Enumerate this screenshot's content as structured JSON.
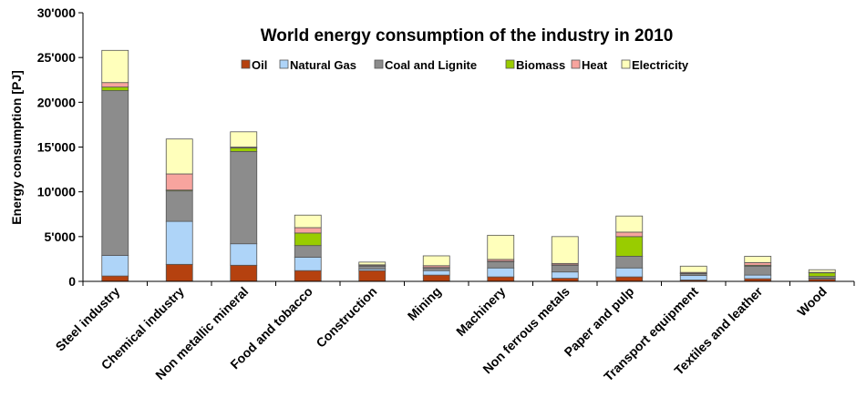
{
  "chart_data": {
    "type": "bar",
    "stacked": true,
    "title": "World energy consumption of the industry in 2010",
    "xlabel": "",
    "ylabel": "Energy consumption [PJ]",
    "ylim": [
      0,
      30000
    ],
    "yticks": [
      {
        "value": 0,
        "label": "0"
      },
      {
        "value": 5000,
        "label": "5'000"
      },
      {
        "value": 10000,
        "label": "10'000"
      },
      {
        "value": 15000,
        "label": "15'000"
      },
      {
        "value": 20000,
        "label": "20'000"
      },
      {
        "value": 25000,
        "label": "25'000"
      },
      {
        "value": 30000,
        "label": "30'000"
      }
    ],
    "grid": false,
    "legend_position": "top",
    "categories": [
      "Steel industry",
      "Chemical industry",
      "Non metallic mineral",
      "Food and tobacco",
      "Construction",
      "Mining",
      "Machinery",
      "Non ferrous metals",
      "Paper and pulp",
      "Transport equipment",
      "Textiles and leather",
      "Wood"
    ],
    "series": [
      {
        "name": "Oil",
        "color": "#b5410f",
        "values": [
          600,
          1900,
          1800,
          1200,
          1200,
          700,
          500,
          350,
          500,
          150,
          300,
          250
        ]
      },
      {
        "name": "Natural Gas",
        "color": "#aed4f8",
        "values": [
          2300,
          4800,
          2400,
          1500,
          200,
          500,
          1000,
          700,
          1000,
          500,
          400,
          100
        ]
      },
      {
        "name": "Coal and Lignite",
        "color": "#8c8c8c",
        "values": [
          18400,
          3400,
          10300,
          1300,
          300,
          300,
          700,
          750,
          1300,
          200,
          1000,
          200
        ]
      },
      {
        "name": "Biomass",
        "color": "#99cc00",
        "values": [
          400,
          100,
          400,
          1400,
          50,
          50,
          50,
          50,
          2200,
          50,
          100,
          400
        ]
      },
      {
        "name": "Heat",
        "color": "#f7a49e",
        "values": [
          500,
          1800,
          100,
          600,
          100,
          200,
          200,
          150,
          500,
          100,
          300,
          50
        ]
      },
      {
        "name": "Electricity",
        "color": "#ffffbb",
        "values": [
          3600,
          3900,
          1700,
          1400,
          300,
          1100,
          2700,
          3000,
          1800,
          700,
          700,
          300
        ]
      }
    ]
  }
}
